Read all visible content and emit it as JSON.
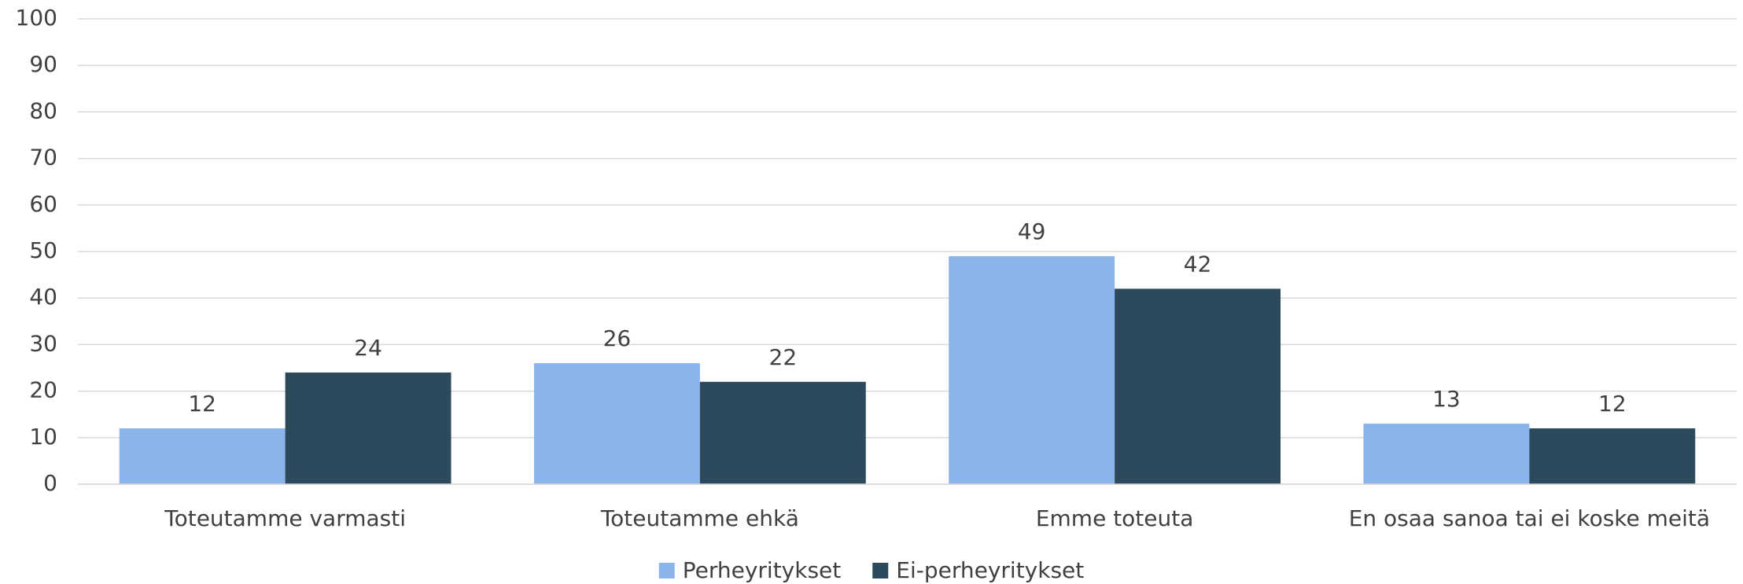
{
  "chart_data": {
    "type": "bar",
    "categories": [
      "Toteutamme varmasti",
      "Toteutamme ehkä",
      "Emme toteuta",
      "En osaa sanoa tai ei koske meitä"
    ],
    "series": [
      {
        "name": "Perheyritykset",
        "color": "#8ab4ec",
        "values": [
          12,
          26,
          49,
          13
        ]
      },
      {
        "name": "Ei-perheyritykset",
        "color": "#2d4a5c",
        "values": [
          24,
          22,
          42,
          12
        ]
      }
    ],
    "ylim": [
      0,
      100
    ],
    "yticks": [
      0,
      10,
      20,
      30,
      40,
      50,
      60,
      70,
      80,
      90,
      100
    ],
    "grid": true,
    "legend": "bottom"
  }
}
